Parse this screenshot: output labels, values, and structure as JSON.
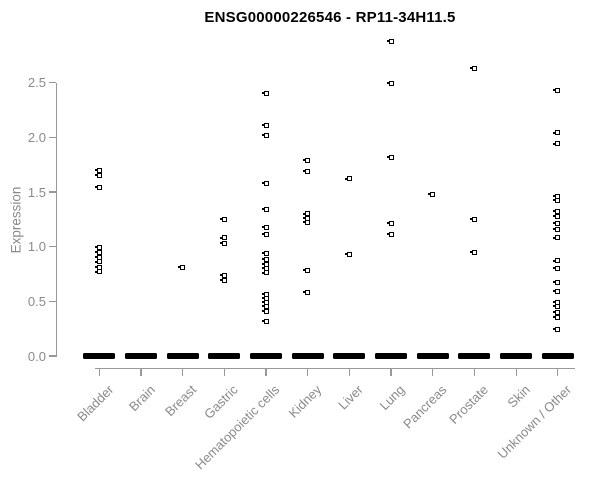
{
  "title": "ENSG00000226546 - RP11-34H11.5",
  "chart_data": {
    "type": "scatter",
    "subtype": "strip-chart",
    "title": "ENSG00000226546 - RP11-34H11.5",
    "xlabel": "",
    "ylabel": "Expression",
    "ylim": [
      0,
      2.9
    ],
    "ytick_labels": [
      "0.0",
      "0.5",
      "1.0",
      "1.5",
      "2.0",
      "2.5"
    ],
    "ytick_values": [
      0.0,
      0.5,
      1.0,
      1.5,
      2.0,
      2.5
    ],
    "grid": "off",
    "legend": "none",
    "marker": "open-square",
    "marker_color": "#000000",
    "axis_color": "#999999",
    "axis_text_color": "#8a8a8a",
    "title_color": "#000000",
    "categories": [
      "Bladder",
      "Brain",
      "Breast",
      "Gastric",
      "Hematopoietic cells",
      "Kidney",
      "Liver",
      "Lung",
      "Pancreas",
      "Prostate",
      "Skin",
      "Unknown / Other"
    ],
    "series": [
      {
        "category": "Bladder",
        "values": [
          1.7,
          1.65,
          1.54,
          0.99,
          0.95,
          0.9,
          0.86,
          0.81,
          0.77
        ],
        "zero_cluster": true
      },
      {
        "category": "Brain",
        "values": [],
        "zero_cluster": true
      },
      {
        "category": "Breast",
        "values": [
          0.81
        ],
        "zero_cluster": true
      },
      {
        "category": "Gastric",
        "values": [
          1.25,
          1.08,
          1.03,
          0.74,
          0.69
        ],
        "zero_cluster": true
      },
      {
        "category": "Hematopoietic cells",
        "values": [
          2.4,
          2.11,
          2.02,
          1.58,
          1.34,
          1.18,
          1.11,
          0.94,
          0.88,
          0.84,
          0.8,
          0.76,
          0.56,
          0.53,
          0.49,
          0.45,
          0.41,
          0.32
        ],
        "zero_cluster": true
      },
      {
        "category": "Kidney",
        "values": [
          1.79,
          1.69,
          1.3,
          1.26,
          1.22,
          0.78,
          0.58
        ],
        "zero_cluster": true
      },
      {
        "category": "Liver",
        "values": [
          1.62,
          0.93
        ],
        "zero_cluster": true
      },
      {
        "category": "Lung",
        "values": [
          2.88,
          2.49,
          1.82,
          1.21,
          1.11
        ],
        "zero_cluster": true
      },
      {
        "category": "Pancreas",
        "values": [
          1.48
        ],
        "zero_cluster": true
      },
      {
        "category": "Prostate",
        "values": [
          2.63,
          1.25,
          0.95
        ],
        "zero_cluster": true
      },
      {
        "category": "Skin",
        "values": [],
        "zero_cluster": true
      },
      {
        "category": "Unknown / Other",
        "values": [
          2.43,
          2.04,
          1.94,
          1.46,
          1.42,
          1.32,
          1.28,
          1.21,
          1.16,
          1.08,
          0.87,
          0.8,
          0.67,
          0.59,
          0.49,
          0.45,
          0.4,
          0.35,
          0.24
        ],
        "zero_cluster": true
      }
    ]
  }
}
